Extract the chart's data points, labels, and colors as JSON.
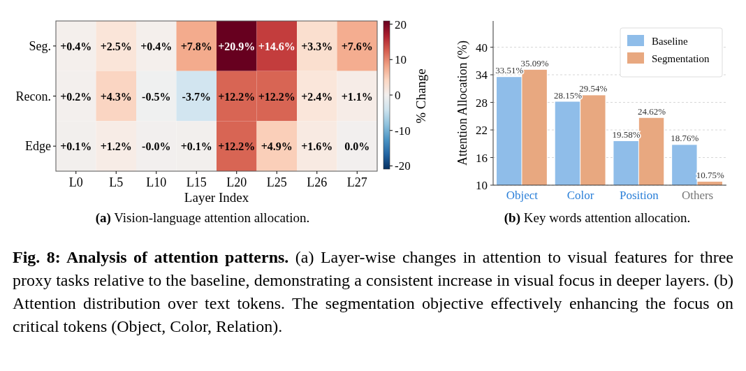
{
  "chart_data": [
    {
      "type": "heatmap",
      "xlabel": "Layer Index",
      "clabel": "% Change",
      "categories": [
        "L0",
        "L5",
        "L10",
        "L15",
        "L20",
        "L25",
        "L26",
        "L27"
      ],
      "y_categories": [
        "Seg.",
        "Recon.",
        "Edge"
      ],
      "cells": [
        [
          0.4,
          2.5,
          0.4,
          7.8,
          20.9,
          14.6,
          3.3,
          7.6
        ],
        [
          0.2,
          4.3,
          -0.5,
          -3.7,
          12.2,
          12.2,
          2.4,
          1.1
        ],
        [
          0.1,
          1.2,
          -0.0,
          0.1,
          12.2,
          4.9,
          1.6,
          0.0
        ]
      ],
      "cell_labels": [
        [
          "+0.4%",
          "+2.5%",
          "+0.4%",
          "+7.8%",
          "+20.9%",
          "+14.6%",
          "+3.3%",
          "+7.6%"
        ],
        [
          "+0.2%",
          "+4.3%",
          "-0.5%",
          "-3.7%",
          "+12.2%",
          "+12.2%",
          "+2.4%",
          "+1.1%"
        ],
        [
          "+0.1%",
          "+1.2%",
          "-0.0%",
          "+0.1%",
          "+12.2%",
          "+4.9%",
          "+1.6%",
          "0.0%"
        ]
      ],
      "clim": [
        -20.9,
        20.9
      ],
      "cticks": [
        -20,
        -10,
        0,
        10,
        20
      ],
      "annotations": [
        "(a) Vision-language attention allocation."
      ]
    },
    {
      "type": "bar",
      "ylabel": "Attention Allocation (%)",
      "categories": [
        "Object",
        "Color",
        "Position",
        "Others"
      ],
      "series": [
        {
          "name": "Baseline",
          "color": "#8fbde9",
          "values": [
            33.51,
            28.15,
            19.58,
            18.76
          ],
          "value_labels": [
            "33.51%",
            "28.15%",
            "19.58%",
            "18.76%"
          ]
        },
        {
          "name": "Segmentation",
          "color": "#e8a880",
          "values": [
            35.09,
            29.54,
            24.62,
            10.75
          ],
          "value_labels": [
            "35.09%",
            "29.54%",
            "24.62%",
            "10.75%"
          ]
        }
      ],
      "ylim": [
        10,
        45.7
      ],
      "yticks": [
        10,
        16,
        22,
        28,
        34,
        40
      ],
      "grid": "y",
      "legend": "top right",
      "annotations": [
        "(b) Key words attention allocation."
      ]
    },
    {
      "type": "other",
      "title": "Fig. 8: Analysis of attention patterns.",
      "annotations": [
        "(a) Layer-wise changes in attention to visual features for three proxy tasks relative to the baseline, demonstrating a consistent increase in visual focus in deeper layers. (b) Attention distribution over text tokens. The segmentation objective effectively enhancing the focus on critical tokens (Object, Color, Relation)."
      ]
    }
  ]
}
